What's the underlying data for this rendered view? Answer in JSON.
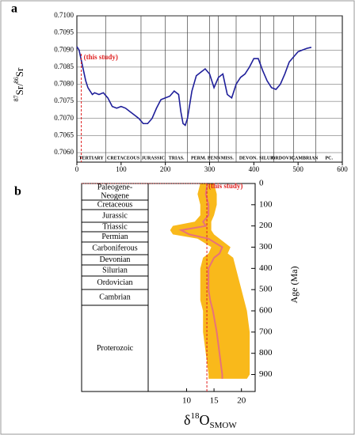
{
  "chart_data": [
    {
      "type": "line",
      "panel": "a",
      "ylabel_parts": [
        "87",
        "Sr/",
        "86",
        "Sr"
      ],
      "x": [
        0,
        5,
        10,
        15,
        20,
        25,
        30,
        35,
        40,
        50,
        60,
        70,
        80,
        90,
        100,
        110,
        120,
        130,
        140,
        150,
        160,
        170,
        180,
        190,
        200,
        210,
        220,
        230,
        235,
        240,
        245,
        250,
        255,
        260,
        270,
        280,
        290,
        300,
        310,
        320,
        330,
        340,
        350,
        360,
        370,
        380,
        390,
        400,
        410,
        420,
        430,
        440,
        450,
        460,
        470,
        480,
        500,
        520,
        530
      ],
      "values": [
        0.7091,
        0.709,
        0.7087,
        0.7084,
        0.7081,
        0.7079,
        0.7078,
        0.7077,
        0.70775,
        0.7077,
        0.70775,
        0.7076,
        0.70735,
        0.7073,
        0.70735,
        0.7073,
        0.7072,
        0.7071,
        0.707,
        0.70685,
        0.70685,
        0.707,
        0.7073,
        0.70755,
        0.7076,
        0.70765,
        0.7078,
        0.7077,
        0.7072,
        0.70685,
        0.7068,
        0.707,
        0.7074,
        0.7078,
        0.70825,
        0.70835,
        0.70845,
        0.7083,
        0.7079,
        0.7082,
        0.7083,
        0.7077,
        0.7076,
        0.708,
        0.7082,
        0.7083,
        0.7085,
        0.70875,
        0.70875,
        0.7084,
        0.7081,
        0.7079,
        0.70785,
        0.708,
        0.7083,
        0.70865,
        0.70895,
        0.70905,
        0.70908
      ],
      "color": "#1f1f9a",
      "xlim": [
        0,
        600
      ],
      "xticks": [
        0,
        100,
        200,
        300,
        400,
        500,
        600
      ],
      "ylim": [
        0.706,
        0.71
      ],
      "yticks": [
        {
          "value": 0.706,
          "label": "0.7060"
        },
        {
          "value": 0.7065,
          "label": "0.7065"
        },
        {
          "value": 0.707,
          "label": "0.7070"
        },
        {
          "value": 0.7075,
          "label": "0.7075"
        },
        {
          "value": 0.708,
          "label": "0.7080"
        },
        {
          "value": 0.7085,
          "label": "0.7085"
        },
        {
          "value": 0.709,
          "label": "0.7090"
        },
        {
          "value": 0.7095,
          "label": "0.7095"
        },
        {
          "value": 0.71,
          "label": "0.7100"
        }
      ],
      "grid": true,
      "periods": [
        {
          "name": "TERTIARY",
          "start": 0,
          "end": 65
        },
        {
          "name": "CRETACEOUS",
          "start": 65,
          "end": 145
        },
        {
          "name": "JURASSIC",
          "start": 145,
          "end": 200
        },
        {
          "name": "TRIAS.",
          "start": 200,
          "end": 250
        },
        {
          "name": "PERM.",
          "start": 250,
          "end": 300
        },
        {
          "name": "PENN",
          "start": 300,
          "end": 320
        },
        {
          "name": "MISS.",
          "start": 320,
          "end": 360
        },
        {
          "name": "DEVON.",
          "start": 360,
          "end": 415
        },
        {
          "name": "SILUR.",
          "start": 415,
          "end": 445
        },
        {
          "name": "ORDOVIC.",
          "start": 445,
          "end": 490
        },
        {
          "name": "CAMBRIAN",
          "start": 490,
          "end": 540
        },
        {
          "name": "PC.",
          "start": 540,
          "end": 600
        }
      ],
      "this_study": {
        "label": "(this study)",
        "x": 10,
        "color": "#e02020"
      }
    },
    {
      "type": "band",
      "panel": "b",
      "timescale": [
        [
          "Paleogene-",
          "Neogene"
        ],
        [
          "Cretaceous"
        ],
        [
          "Jurassic"
        ],
        [
          "Triassic"
        ],
        [
          "Permian"
        ],
        [
          "Carboniferous"
        ],
        [
          "Devonian"
        ],
        [
          "Silurian"
        ],
        [
          "Ordovician"
        ],
        [
          "Cambrian"
        ],
        [
          "Proterozoic"
        ]
      ],
      "y": [
        0,
        50,
        100,
        150,
        180,
        200,
        220,
        240,
        260,
        300,
        330,
        350,
        400,
        450,
        500,
        550,
        600,
        700,
        800,
        900,
        920
      ],
      "lower": [
        12.5,
        12,
        12.5,
        12.5,
        11.5,
        7.5,
        7,
        7.5,
        12,
        14.5,
        14,
        13,
        12.5,
        12.5,
        12.5,
        12.5,
        13,
        13,
        13.5,
        14,
        14
      ],
      "mean": [
        13.8,
        13.5,
        14,
        14,
        13,
        13.5,
        9,
        10.5,
        14,
        16.5,
        16,
        15,
        14,
        14,
        14,
        14.3,
        14.8,
        15.5,
        16,
        16.5,
        16.5
      ],
      "upper": [
        15,
        15.5,
        15.5,
        15,
        14.5,
        14.5,
        14.5,
        15,
        16,
        18,
        17.5,
        18.5,
        19,
        19.5,
        20,
        20.5,
        21,
        21.5,
        21.5,
        21.5,
        21
      ],
      "band_color": "#f9b91b",
      "line_color": "#e8727a",
      "xlim": [
        3,
        22.5
      ],
      "xticks": [
        10,
        15,
        20
      ],
      "ylim": [
        0,
        980
      ],
      "yticks": [
        0,
        100,
        200,
        300,
        400,
        500,
        600,
        700,
        800,
        900
      ],
      "ylabel": "Age (Ma)",
      "xlabel_parts": [
        "δ",
        "18",
        "O",
        "SMOW"
      ],
      "this_study": {
        "label": "(this study)",
        "x": 13.7,
        "color": "#e02020"
      }
    }
  ]
}
